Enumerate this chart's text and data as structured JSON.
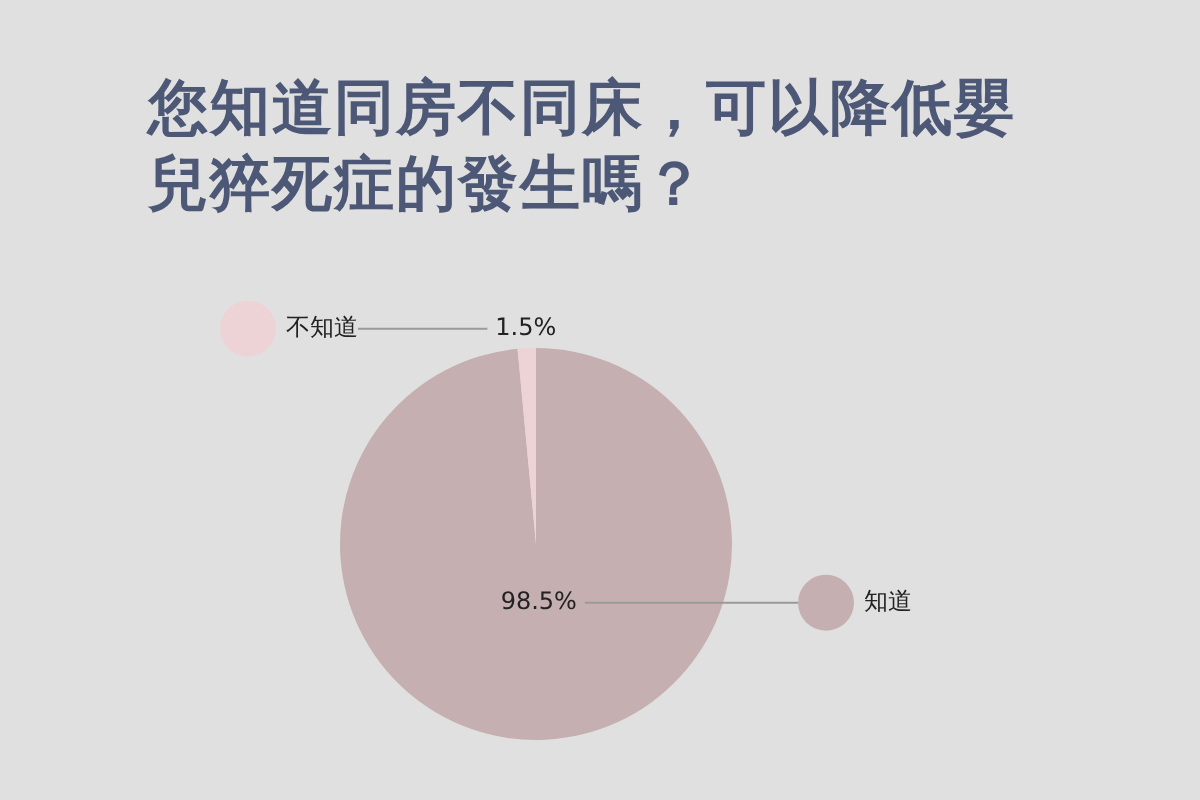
{
  "chart_data": {
    "type": "pie",
    "title": "您知道同房不同床，可以降低嬰兒猝死症的發生嗎？",
    "categories": [
      "知道",
      "不知道"
    ],
    "values": [
      98.5,
      1.5
    ],
    "colors": [
      "#c5afb0",
      "#edd3d6"
    ],
    "value_labels": [
      "98.5%",
      "1.5%"
    ],
    "legend": "right"
  }
}
